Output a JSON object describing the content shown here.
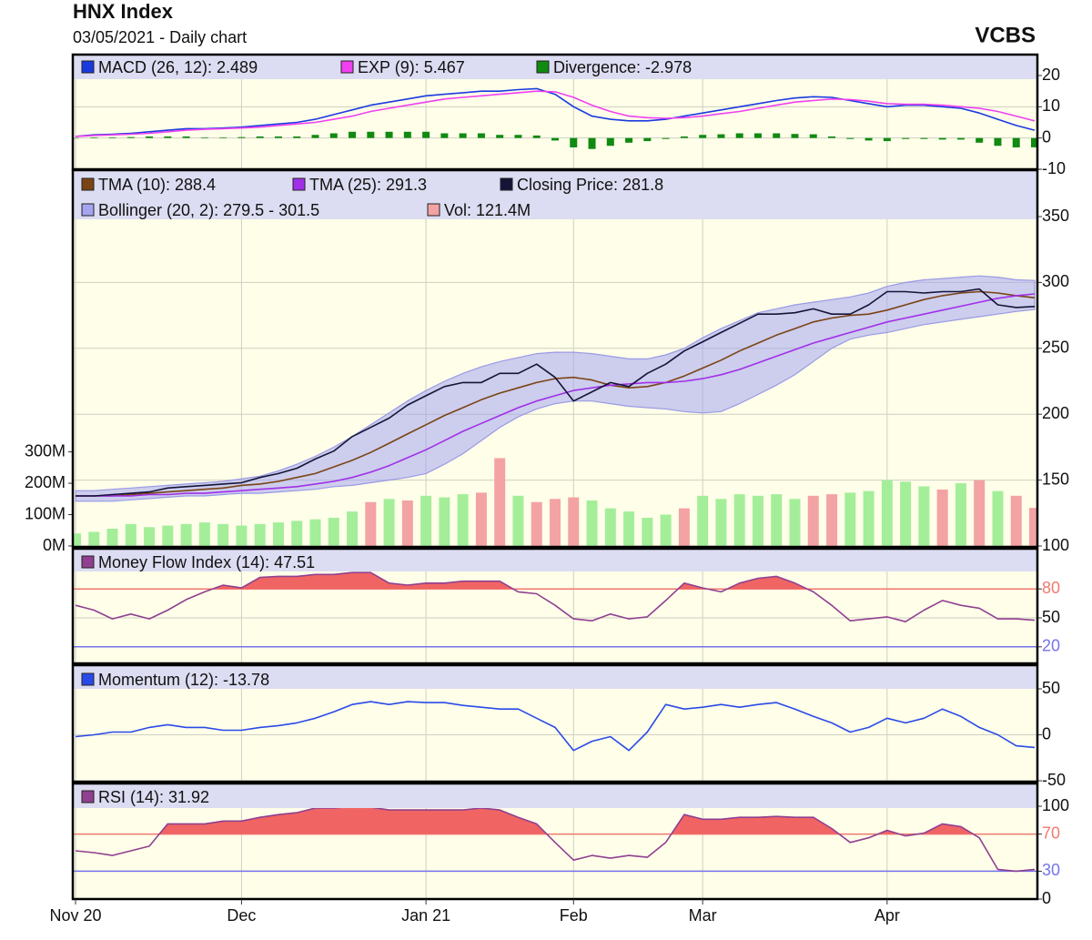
{
  "header": {
    "title": "HNX Index",
    "subtitle": "03/05/2021 - Daily chart",
    "source": "VCBS"
  },
  "xaxis": {
    "xlim": [
      0,
      52
    ],
    "xticks": [
      {
        "value": 0,
        "label": "Nov 20"
      },
      {
        "value": 9,
        "label": "Dec"
      },
      {
        "value": 19,
        "label": "Jan 21"
      },
      {
        "value": 27,
        "label": "Feb"
      },
      {
        "value": 34,
        "label": "Mar"
      },
      {
        "value": 44,
        "label": "Apr"
      }
    ],
    "grid": true
  },
  "chart_data": [
    {
      "type": "line",
      "ylim": [
        -10,
        20
      ],
      "yticks": [
        -10,
        0,
        10,
        20
      ],
      "grid": true,
      "series": [
        {
          "name": "MACD (26, 12): 2.489",
          "color": "#1a3ae0",
          "style": "line",
          "values": [
            0.5,
            1,
            1.2,
            1.5,
            2,
            2.5,
            3,
            3,
            3.2,
            3.5,
            4,
            4.5,
            5,
            6,
            7.5,
            9,
            10.5,
            11.5,
            12.5,
            13.5,
            14,
            14.5,
            15,
            15,
            15.5,
            15.8,
            14,
            10,
            7,
            6,
            5.5,
            5.5,
            6,
            7,
            8,
            9,
            10,
            11,
            12,
            12.8,
            13.2,
            13,
            12,
            11,
            10,
            10.5,
            10.5,
            10,
            9.5,
            8,
            6,
            4,
            2.489
          ]
        },
        {
          "name": "EXP (9): 5.467",
          "color": "#f040f0",
          "style": "line",
          "values": [
            0.5,
            0.8,
            1,
            1.2,
            1.5,
            2,
            2.5,
            2.8,
            3,
            3.2,
            3.5,
            4,
            4.5,
            5,
            6,
            7,
            8.5,
            9.5,
            10.5,
            11.5,
            12.5,
            13,
            13.5,
            14,
            14.5,
            15,
            14.8,
            13,
            10.5,
            8.5,
            7,
            6.5,
            6.3,
            6.5,
            7,
            7.8,
            8.5,
            9.5,
            10.5,
            11.5,
            12,
            12.5,
            12.3,
            11.8,
            11,
            10.8,
            10.8,
            10.5,
            10,
            9.5,
            8.5,
            7,
            5.467
          ]
        },
        {
          "name": "Divergence: -2.978",
          "color": "#108a10",
          "style": "bar",
          "values": [
            0,
            0.2,
            0.2,
            0.3,
            0.5,
            0.5,
            0.5,
            0.2,
            0.2,
            0.3,
            0.5,
            0.5,
            0.5,
            1,
            1.5,
            2,
            2,
            2,
            2,
            2,
            1.5,
            1.5,
            1.5,
            1,
            1,
            0.8,
            -0.8,
            -3,
            -3.5,
            -2.5,
            -1.5,
            -1,
            -0.3,
            0.5,
            1,
            1.2,
            1.5,
            1.5,
            1.5,
            1.3,
            1.2,
            0.5,
            -0.3,
            -0.8,
            -1,
            -0.3,
            -0.3,
            -0.5,
            -0.5,
            -1.5,
            -2.5,
            -3,
            -2.978
          ]
        }
      ]
    },
    {
      "type": "line",
      "ylim": [
        100,
        350
      ],
      "yticks": [
        100,
        150,
        200,
        250,
        300,
        350
      ],
      "grid": true,
      "y2lim": [
        0,
        1050000000
      ],
      "y2ticks": [
        {
          "value": 0,
          "label": "0M"
        },
        {
          "value": 100000000,
          "label": "100M"
        },
        {
          "value": 200000000,
          "label": "200M"
        },
        {
          "value": 300000000,
          "label": "300M"
        }
      ],
      "series": [
        {
          "name": "TMA (10): 288.4",
          "color": "#7a4414",
          "style": "line",
          "values": [
            138,
            138,
            138,
            139,
            140,
            141,
            142,
            143,
            144,
            146,
            147,
            149,
            152,
            155,
            160,
            165,
            171,
            178,
            185,
            192,
            199,
            205,
            211,
            216,
            220,
            224,
            227,
            228,
            226,
            222,
            220,
            221,
            224,
            229,
            235,
            241,
            248,
            254,
            260,
            265,
            270,
            273,
            275,
            276,
            279,
            283,
            287,
            290,
            292,
            293,
            292,
            290,
            288.4
          ]
        },
        {
          "name": "TMA (25): 291.3",
          "color": "#a030e8",
          "style": "line",
          "values": [
            138,
            138,
            138,
            138,
            139,
            139,
            140,
            140,
            141,
            142,
            143,
            144,
            145,
            147,
            149,
            152,
            156,
            161,
            167,
            173,
            180,
            187,
            193,
            199,
            205,
            210,
            214,
            218,
            220,
            222,
            223,
            224,
            224,
            225,
            227,
            230,
            234,
            239,
            244,
            249,
            254,
            258,
            262,
            266,
            270,
            273,
            276,
            279,
            282,
            285,
            288,
            290,
            291.3
          ]
        },
        {
          "name": "Closing Price: 281.8",
          "color": "#141438",
          "style": "line",
          "values": [
            138,
            138,
            139,
            140,
            141,
            144,
            145,
            146,
            147,
            148,
            152,
            155,
            159,
            166,
            172,
            183,
            190,
            197,
            207,
            214,
            221,
            224,
            224,
            231,
            231,
            238,
            228,
            210,
            217,
            224,
            221,
            231,
            238,
            248,
            255,
            262,
            269,
            276,
            276,
            277,
            280,
            276,
            276,
            283,
            293,
            293,
            292,
            293,
            293,
            295,
            283,
            281,
            281.8
          ]
        },
        {
          "name": "Bollinger (20, 2): 279.5 - 301.5",
          "color": "#a4a4f0",
          "style": "band",
          "upper": [
            142,
            142,
            143,
            144,
            145,
            146,
            147,
            148,
            149,
            151,
            153,
            157,
            162,
            168,
            175,
            183,
            192,
            201,
            210,
            218,
            225,
            231,
            236,
            240,
            243,
            246,
            247,
            247,
            246,
            244,
            242,
            242,
            245,
            250,
            258,
            265,
            271,
            277,
            280,
            283,
            285,
            287,
            289,
            292,
            297,
            300,
            302,
            303,
            304,
            305,
            304,
            302,
            301.5
          ],
          "lower": [
            134,
            134,
            134,
            135,
            136,
            137,
            138,
            138,
            139,
            140,
            140,
            141,
            142,
            143,
            145,
            146,
            148,
            150,
            152,
            155,
            162,
            170,
            180,
            190,
            198,
            204,
            208,
            210,
            210,
            208,
            206,
            205,
            204,
            202,
            201,
            202,
            208,
            215,
            222,
            230,
            240,
            250,
            257,
            260,
            262,
            265,
            268,
            270,
            272,
            274,
            276,
            278,
            279.5
          ]
        },
        {
          "name": "Vol: 121.4M",
          "color": "#f3a3a3",
          "style": "volume",
          "axis": "y2",
          "values": [
            40000000,
            45000000,
            55000000,
            70000000,
            60000000,
            65000000,
            70000000,
            75000000,
            70000000,
            65000000,
            70000000,
            75000000,
            80000000,
            85000000,
            90000000,
            110000000,
            140000000,
            150000000,
            145000000,
            160000000,
            155000000,
            165000000,
            170000000,
            280000000,
            160000000,
            140000000,
            150000000,
            155000000,
            145000000,
            120000000,
            110000000,
            90000000,
            100000000,
            120000000,
            160000000,
            150000000,
            165000000,
            160000000,
            165000000,
            150000000,
            160000000,
            165000000,
            170000000,
            175000000,
            210000000,
            205000000,
            190000000,
            180000000,
            200000000,
            210000000,
            175000000,
            160000000,
            121400000
          ],
          "colors": [
            "#a4ee9a",
            "#a4ee9a",
            "#a4ee9a",
            "#a4ee9a",
            "#a4ee9a",
            "#a4ee9a",
            "#a4ee9a",
            "#a4ee9a",
            "#a4ee9a",
            "#a4ee9a",
            "#a4ee9a",
            "#a4ee9a",
            "#a4ee9a",
            "#a4ee9a",
            "#a4ee9a",
            "#a4ee9a",
            "#f3a3a3",
            "#a4ee9a",
            "#f3a3a3",
            "#a4ee9a",
            "#a4ee9a",
            "#a4ee9a",
            "#f3a3a3",
            "#f3a3a3",
            "#a4ee9a",
            "#f3a3a3",
            "#f3a3a3",
            "#f3a3a3",
            "#a4ee9a",
            "#a4ee9a",
            "#a4ee9a",
            "#a4ee9a",
            "#a4ee9a",
            "#f3a3a3",
            "#a4ee9a",
            "#a4ee9a",
            "#a4ee9a",
            "#a4ee9a",
            "#a4ee9a",
            "#a4ee9a",
            "#f3a3a3",
            "#f3a3a3",
            "#a4ee9a",
            "#a4ee9a",
            "#a4ee9a",
            "#a4ee9a",
            "#a4ee9a",
            "#f3a3a3",
            "#a4ee9a",
            "#f3a3a3",
            "#a4ee9a",
            "#f3a3a3",
            "#f3a3a3"
          ]
        }
      ]
    },
    {
      "type": "line",
      "ylim": [
        0,
        100
      ],
      "yticks": [
        20,
        50,
        80
      ],
      "grid": true,
      "levels": {
        "upper": 80,
        "lower": 20,
        "upper_color": "#f07a70",
        "lower_color": "#7474ec",
        "fill": "#f06464"
      },
      "series": [
        {
          "name": "Money Flow Index (14): 47.51",
          "color": "#904090",
          "style": "line",
          "fill_above": true,
          "values": [
            63,
            58,
            49,
            54,
            49,
            58,
            69,
            77,
            84,
            81,
            92,
            93,
            93,
            95,
            95,
            97,
            97,
            86,
            84,
            86,
            86,
            88,
            88,
            88,
            77,
            75,
            63,
            49,
            47,
            54,
            49,
            51,
            68,
            86,
            81,
            77,
            86,
            91,
            93,
            86,
            77,
            63,
            47,
            49,
            51,
            46,
            58,
            68,
            63,
            60,
            49,
            49,
            47.51
          ]
        }
      ]
    },
    {
      "type": "line",
      "ylim": [
        -50,
        50
      ],
      "yticks": [
        -50,
        0,
        50
      ],
      "grid": true,
      "series": [
        {
          "name": "Momentum (12): -13.78",
          "color": "#2a4ae8",
          "style": "line",
          "values": [
            -2,
            0,
            3,
            3,
            8,
            11,
            8,
            8,
            5,
            5,
            8,
            10,
            13,
            18,
            25,
            33,
            36,
            33,
            36,
            35,
            35,
            32,
            30,
            28,
            28,
            18,
            8,
            -17,
            -7,
            -2,
            -17,
            3,
            33,
            28,
            30,
            33,
            30,
            33,
            35,
            28,
            20,
            13,
            3,
            8,
            18,
            13,
            18,
            28,
            20,
            8,
            0,
            -12,
            -13.78
          ]
        }
      ]
    },
    {
      "type": "line",
      "ylim": [
        0,
        100
      ],
      "yticks": [
        0,
        30,
        70,
        100
      ],
      "grid": true,
      "levels": {
        "upper": 70,
        "lower": 30,
        "upper_color": "#f07a70",
        "lower_color": "#7474ec",
        "fill": "#f06464"
      },
      "series": [
        {
          "name": "RSI (14): 31.92",
          "color": "#904090",
          "style": "line",
          "fill_above": true,
          "values": [
            52,
            50,
            47,
            52,
            57,
            81,
            81,
            81,
            84,
            84,
            88,
            91,
            93,
            98,
            98,
            100,
            99,
            96,
            96,
            96,
            96,
            96,
            98,
            96,
            88,
            81,
            61,
            42,
            47,
            44,
            47,
            45,
            61,
            91,
            86,
            86,
            88,
            88,
            89,
            88,
            88,
            76,
            61,
            66,
            74,
            68,
            71,
            81,
            78,
            66,
            32,
            30,
            31.92
          ]
        }
      ]
    }
  ]
}
